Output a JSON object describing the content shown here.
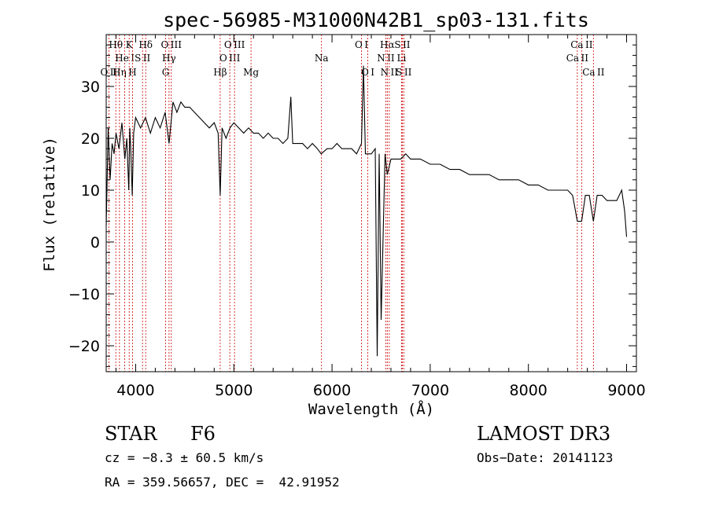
{
  "chart_data": {
    "type": "line",
    "title": "spec-56985-M31000N42B1_sp03-131.fits",
    "xlabel": "Wavelength (Å)",
    "ylabel": "Flux (relative)",
    "xlim": [
      3700,
      9100
    ],
    "ylim": [
      -25,
      40
    ],
    "xticks": [
      4000,
      5000,
      6000,
      7000,
      8000,
      9000
    ],
    "yticks": [
      -20,
      -10,
      0,
      10,
      20,
      30
    ],
    "grid": false,
    "series": [
      {
        "name": "flux",
        "color": "#000000",
        "x": [
          3700,
          3720,
          3740,
          3760,
          3780,
          3800,
          3830,
          3860,
          3890,
          3910,
          3930,
          3940,
          3950,
          3965,
          3980,
          4000,
          4050,
          4100,
          4150,
          4200,
          4250,
          4300,
          4340,
          4380,
          4420,
          4460,
          4500,
          4550,
          4600,
          4650,
          4700,
          4750,
          4800,
          4840,
          4861,
          4880,
          4920,
          4960,
          5000,
          5050,
          5100,
          5150,
          5200,
          5250,
          5300,
          5350,
          5400,
          5450,
          5500,
          5550,
          5580,
          5600,
          5650,
          5700,
          5750,
          5800,
          5850,
          5890,
          5950,
          6000,
          6050,
          6100,
          6150,
          6200,
          6250,
          6300,
          6320,
          6340,
          6400,
          6440,
          6460,
          6480,
          6500,
          6540,
          6563,
          6600,
          6650,
          6700,
          6750,
          6800,
          6900,
          7000,
          7100,
          7200,
          7300,
          7400,
          7500,
          7600,
          7700,
          7800,
          7900,
          8000,
          8100,
          8200,
          8300,
          8400,
          8450,
          8498,
          8542,
          8580,
          8620,
          8662,
          8700,
          8750,
          8800,
          8850,
          8900,
          8950,
          8980,
          9000
        ],
        "y": [
          3,
          22,
          12,
          19,
          17,
          21,
          18,
          23,
          16,
          20,
          10,
          22,
          18,
          9,
          21,
          24,
          22,
          24,
          21,
          24,
          22,
          25,
          19,
          27,
          25,
          27,
          26,
          26,
          25,
          24,
          23,
          22,
          23,
          21,
          9,
          22,
          20,
          22,
          23,
          22,
          21,
          22,
          21,
          21,
          20,
          21,
          20,
          20,
          19,
          20,
          28,
          19,
          19,
          19,
          18,
          19,
          18,
          17,
          18,
          18,
          19,
          18,
          18,
          18,
          17,
          19,
          34,
          17,
          17,
          18,
          -22,
          17,
          -15,
          17,
          13,
          16,
          16,
          16,
          17,
          16,
          16,
          15,
          15,
          14,
          14,
          13,
          13,
          13,
          12,
          12,
          12,
          11,
          11,
          10,
          10,
          10,
          9,
          4,
          4,
          9,
          9,
          4,
          9,
          9,
          8,
          8,
          8,
          10,
          6,
          1
        ]
      }
    ],
    "spectral_lines": [
      {
        "name": "O II",
        "x": 3727,
        "row": 2
      },
      {
        "name": "Hθ",
        "x": 3798,
        "row": 0
      },
      {
        "name": "Hη",
        "x": 3835,
        "row": 2
      },
      {
        "name": "He I",
        "x": 3889,
        "row": 1
      },
      {
        "name": "K",
        "x": 3934,
        "row": 0
      },
      {
        "name": "H",
        "x": 3968,
        "row": 2
      },
      {
        "name": "S II",
        "x": 4070,
        "row": 1
      },
      {
        "name": "Hδ",
        "x": 4102,
        "row": 0
      },
      {
        "name": "G",
        "x": 4305,
        "row": 2
      },
      {
        "name": "Hγ",
        "x": 4340,
        "row": 1
      },
      {
        "name": "O III",
        "x": 4363,
        "row": 0
      },
      {
        "name": "Hβ",
        "x": 4861,
        "row": 2
      },
      {
        "name": "O III",
        "x": 4959,
        "row": 1
      },
      {
        "name": "O III",
        "x": 5007,
        "row": 0
      },
      {
        "name": "Mg",
        "x": 5175,
        "row": 2
      },
      {
        "name": "Na",
        "x": 5893,
        "row": 1
      },
      {
        "name": "O I",
        "x": 6300,
        "row": 0
      },
      {
        "name": "O I",
        "x": 6364,
        "row": 2
      },
      {
        "name": "N II",
        "x": 6548,
        "row": 1
      },
      {
        "name": "Hα",
        "x": 6563,
        "row": 0
      },
      {
        "name": "N II",
        "x": 6583,
        "row": 2
      },
      {
        "name": "Li",
        "x": 6708,
        "row": 1
      },
      {
        "name": "S II",
        "x": 6716,
        "row": 0
      },
      {
        "name": "S II",
        "x": 6731,
        "row": 2
      },
      {
        "name": "Ca II",
        "x": 8498,
        "row": 1
      },
      {
        "name": "Ca II",
        "x": 8542,
        "row": 0
      },
      {
        "name": "Ca II",
        "x": 8662,
        "row": 2
      }
    ]
  },
  "info": {
    "class": "STAR",
    "subclass": "F6",
    "survey": "LAMOST DR3",
    "cz": "cz = −8.3 ± 60.5 km/s",
    "obs_date": "Obs−Date: 20141123",
    "radec": "RA = 359.56657, DEC =  42.91952"
  },
  "colors": {
    "line_marker": "#cc0000",
    "spectrum": "#000000",
    "axes": "#000000"
  }
}
